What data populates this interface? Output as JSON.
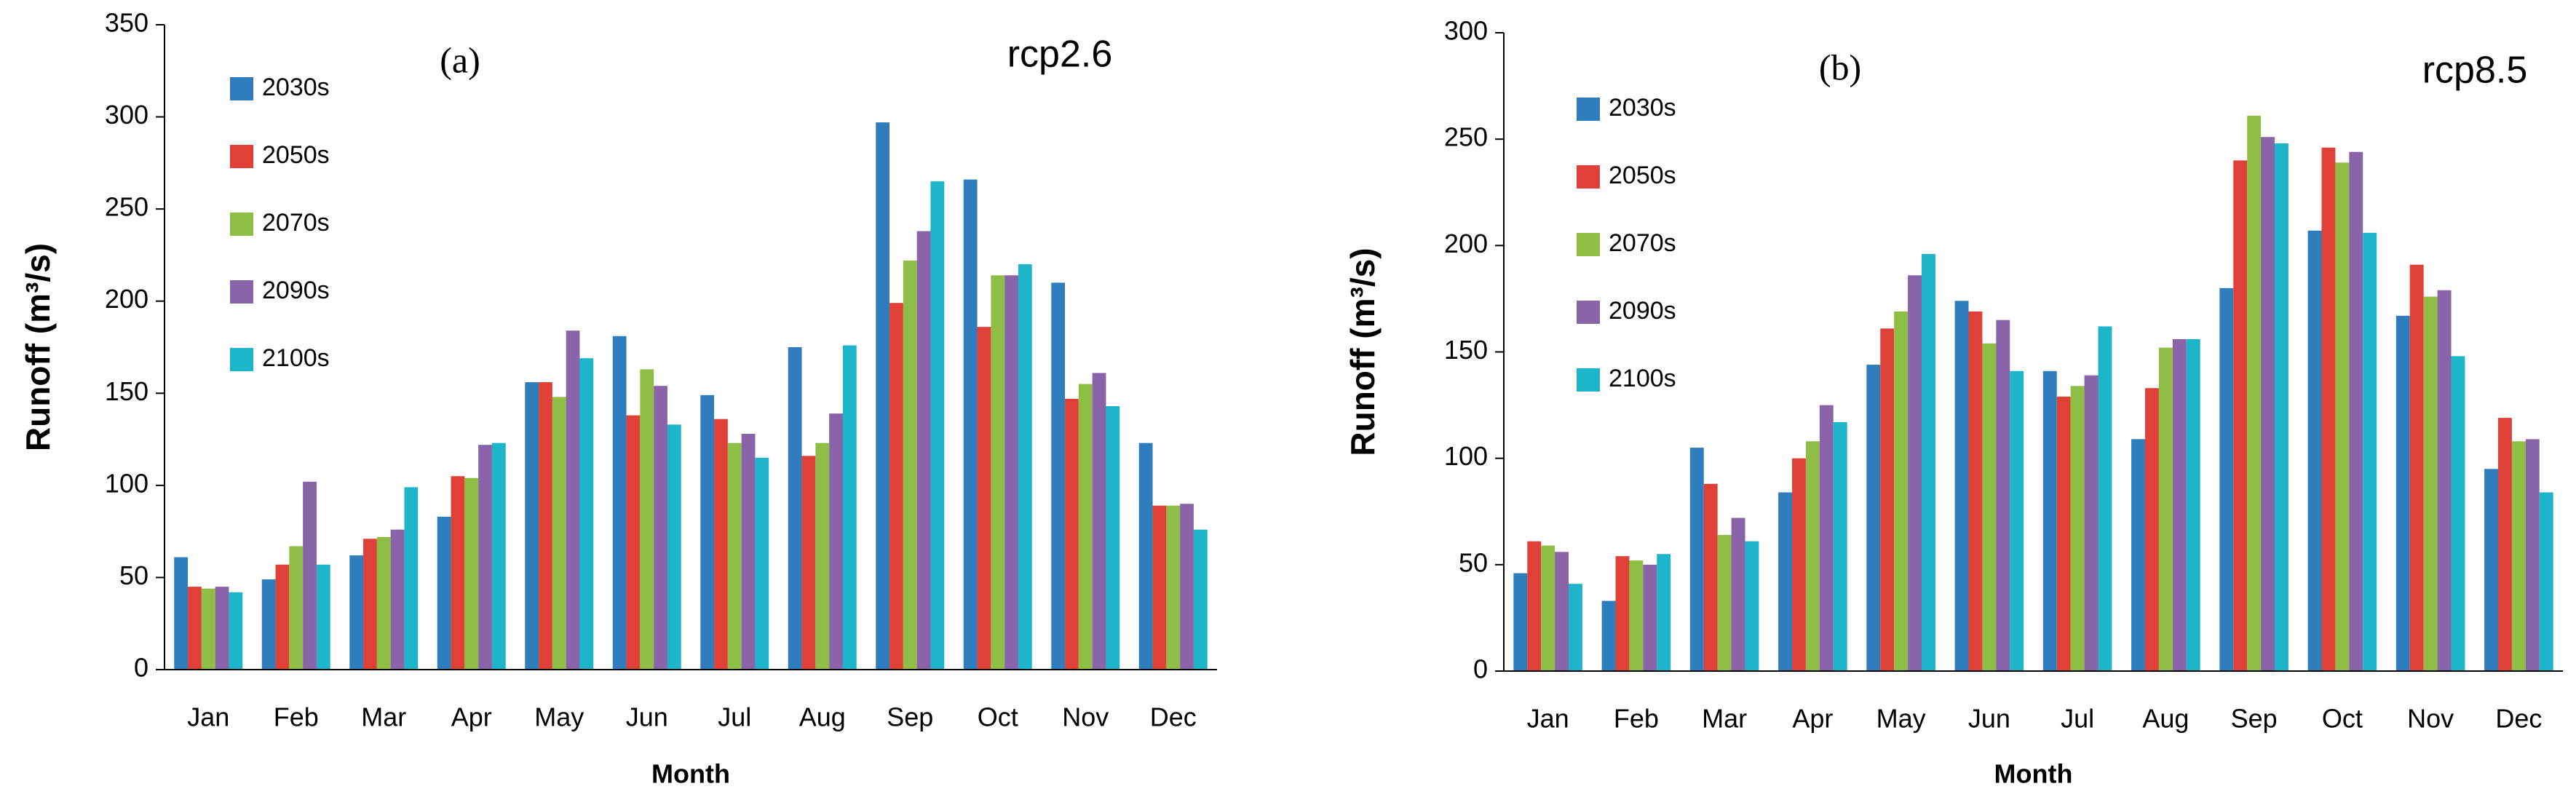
{
  "chart_data": [
    {
      "type": "bar",
      "panel_label": "(a)",
      "title": "rcp2.6",
      "x_label": "Month",
      "y_label": "Runoff (m³/s)",
      "categories": [
        "Jan",
        "Feb",
        "Mar",
        "Apr",
        "May",
        "Jun",
        "Jul",
        "Aug",
        "Sep",
        "Oct",
        "Nov",
        "Dec"
      ],
      "series": [
        {
          "name": "2030s",
          "color": "#2f7dbd",
          "values": [
            61,
            49,
            62,
            83,
            156,
            181,
            149,
            175,
            297,
            266,
            210,
            123
          ]
        },
        {
          "name": "2050s",
          "color": "#df4038",
          "values": [
            45,
            57,
            71,
            105,
            156,
            138,
            136,
            116,
            199,
            186,
            147,
            89
          ]
        },
        {
          "name": "2070s",
          "color": "#8fbe46",
          "values": [
            44,
            67,
            72,
            104,
            148,
            163,
            123,
            123,
            222,
            214,
            155,
            89
          ]
        },
        {
          "name": "2090s",
          "color": "#8a64a8",
          "values": [
            45,
            102,
            76,
            122,
            184,
            154,
            128,
            139,
            238,
            214,
            161,
            90
          ]
        },
        {
          "name": "2100s",
          "color": "#1db5c9",
          "values": [
            42,
            57,
            99,
            123,
            169,
            133,
            115,
            176,
            265,
            220,
            143,
            76
          ]
        }
      ],
      "ylim": [
        0,
        350
      ],
      "yticks": [
        0,
        50,
        100,
        150,
        200,
        250,
        300,
        350
      ]
    },
    {
      "type": "bar",
      "panel_label": "(b)",
      "title": "rcp8.5",
      "x_label": "Month",
      "y_label": "Runoff (m³/s)",
      "categories": [
        "Jan",
        "Feb",
        "Mar",
        "Apr",
        "May",
        "Jun",
        "Jul",
        "Aug",
        "Sep",
        "Oct",
        "Nov",
        "Dec"
      ],
      "series": [
        {
          "name": "2030s",
          "color": "#2f7dbd",
          "values": [
            46,
            33,
            105,
            84,
            144,
            174,
            141,
            109,
            180,
            207,
            167,
            95
          ]
        },
        {
          "name": "2050s",
          "color": "#df4038",
          "values": [
            61,
            54,
            88,
            100,
            161,
            169,
            129,
            133,
            240,
            246,
            191,
            119
          ]
        },
        {
          "name": "2070s",
          "color": "#8fbe46",
          "values": [
            59,
            52,
            64,
            108,
            169,
            154,
            134,
            152,
            261,
            239,
            176,
            108
          ]
        },
        {
          "name": "2090s",
          "color": "#8a64a8",
          "values": [
            56,
            50,
            72,
            125,
            186,
            165,
            139,
            156,
            251,
            244,
            179,
            109
          ]
        },
        {
          "name": "2100s",
          "color": "#1db5c9",
          "values": [
            41,
            55,
            61,
            117,
            196,
            141,
            162,
            156,
            248,
            206,
            148,
            84
          ]
        }
      ],
      "ylim": [
        0,
        300
      ],
      "yticks": [
        0,
        50,
        100,
        150,
        200,
        250,
        300
      ]
    }
  ]
}
